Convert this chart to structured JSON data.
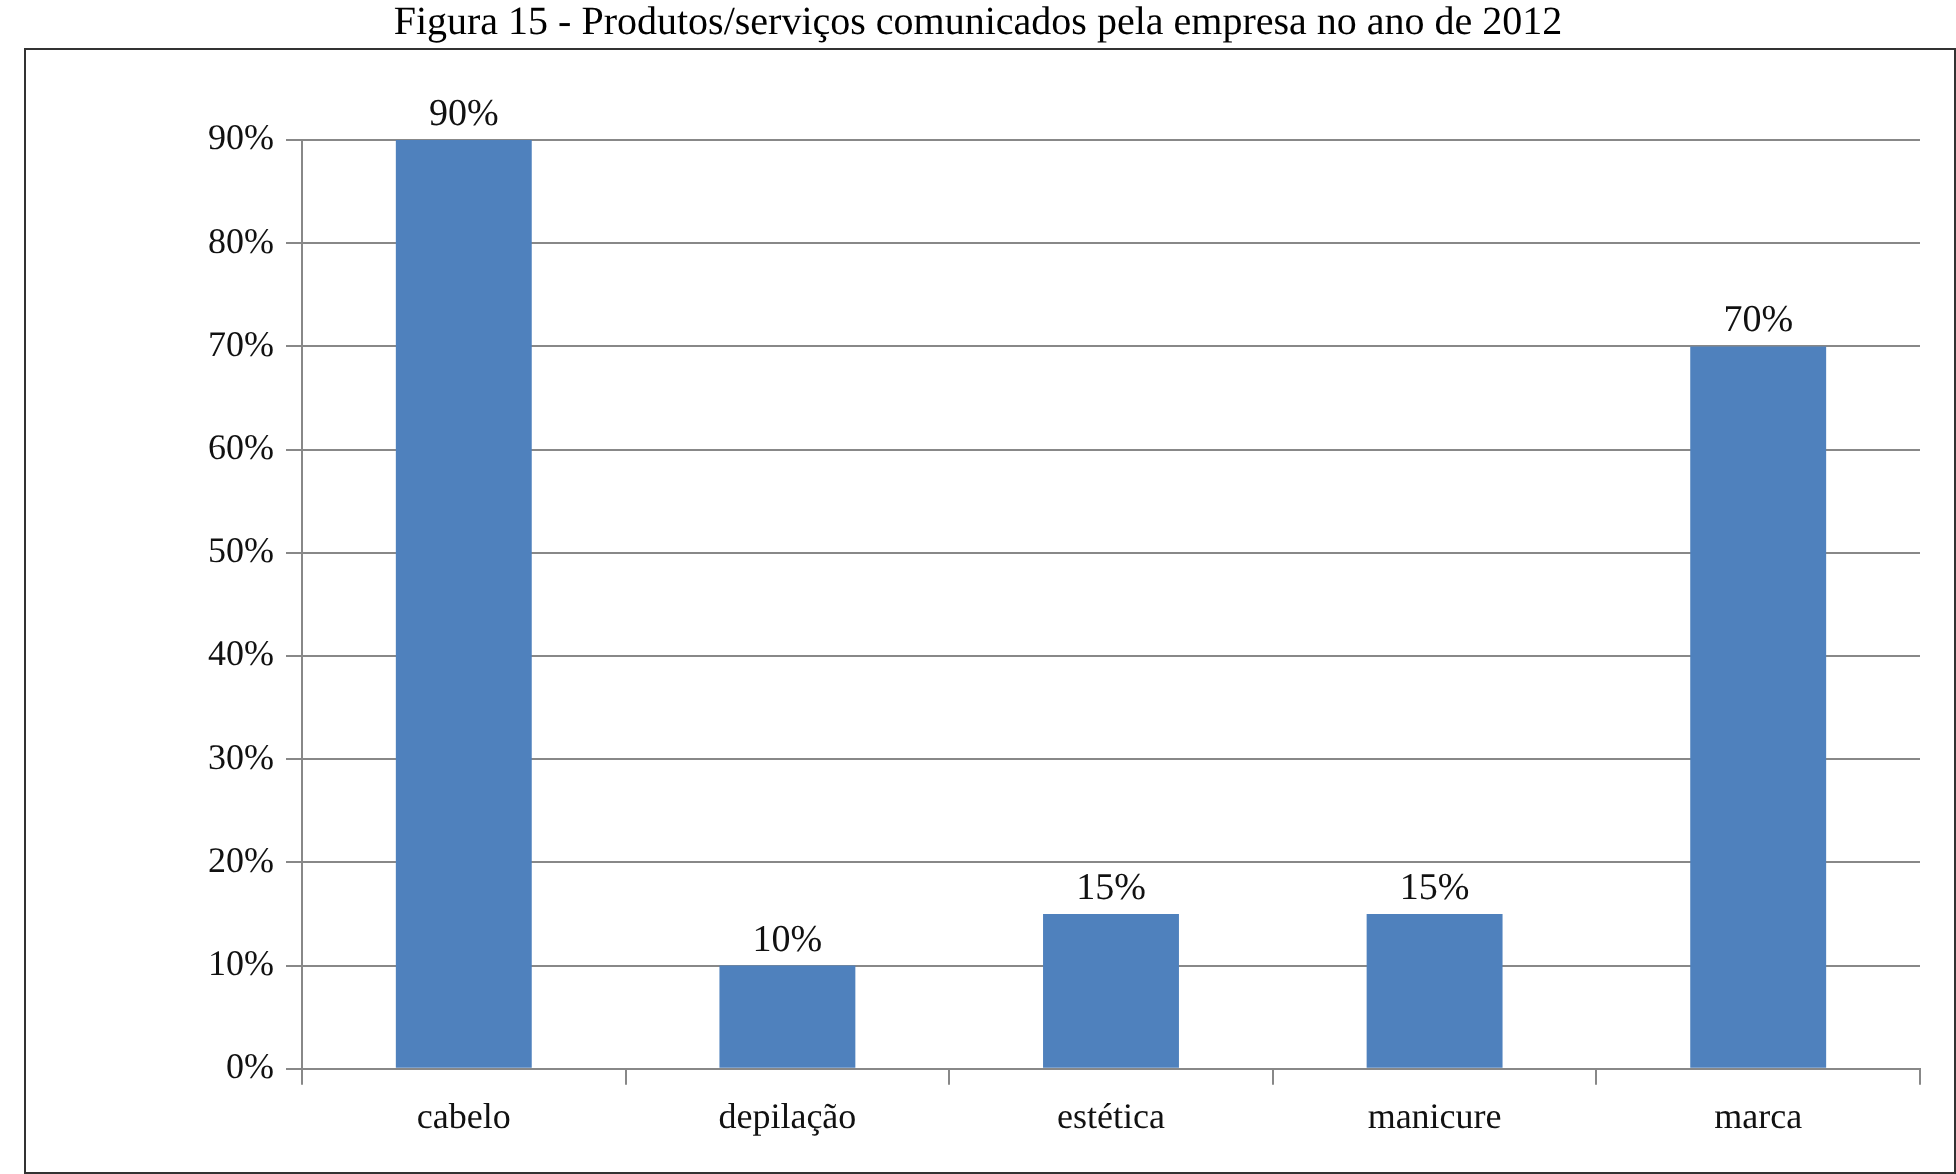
{
  "chart_data": {
    "type": "bar",
    "title": "Figura 15 - Produtos/serviços comunicados pela empresa no ano de 2012",
    "categories": [
      "cabelo",
      "depilação",
      "estética",
      "manicure",
      "marca"
    ],
    "values": [
      90,
      10,
      15,
      15,
      70
    ],
    "value_labels": [
      "90%",
      "10%",
      "15%",
      "15%",
      "70%"
    ],
    "color": "#4f81bd",
    "ylim": [
      0,
      90
    ],
    "yticks": [
      {
        "value": 0,
        "label": "0%"
      },
      {
        "value": 10,
        "label": "10%"
      },
      {
        "value": 20,
        "label": "20%"
      },
      {
        "value": 30,
        "label": "30%"
      },
      {
        "value": 40,
        "label": "40%"
      },
      {
        "value": 50,
        "label": "50%"
      },
      {
        "value": 60,
        "label": "60%"
      },
      {
        "value": 70,
        "label": "70%"
      },
      {
        "value": 80,
        "label": "80%"
      },
      {
        "value": 90,
        "label": "90%"
      }
    ],
    "grid": "y",
    "legend": false
  }
}
